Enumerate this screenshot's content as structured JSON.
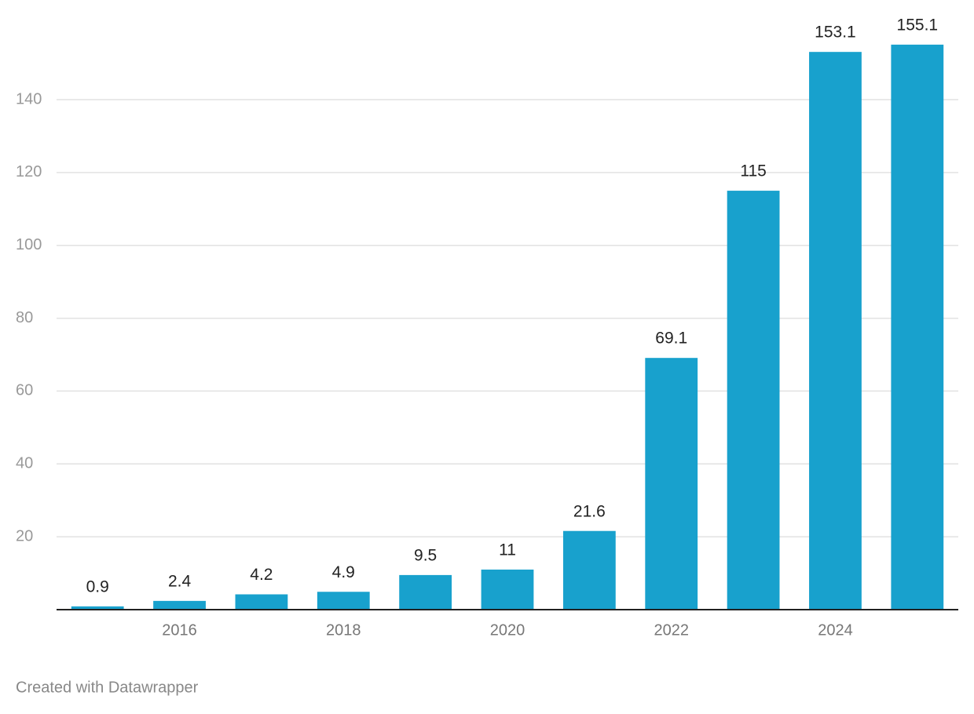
{
  "chart_data": {
    "type": "bar",
    "categories": [
      null,
      "2016",
      null,
      "2018",
      null,
      "2020",
      null,
      "2022",
      null,
      "2024",
      null
    ],
    "values": [
      0.9,
      2.4,
      4.2,
      4.9,
      9.5,
      11,
      21.6,
      69.1,
      115,
      153.1,
      155.1
    ],
    "color": "#18a1cd",
    "ylim": [
      0,
      160
    ],
    "yticks": [
      20,
      40,
      60,
      80,
      100,
      120,
      140
    ],
    "grid": true,
    "credit": "Created with Datawrapper"
  }
}
